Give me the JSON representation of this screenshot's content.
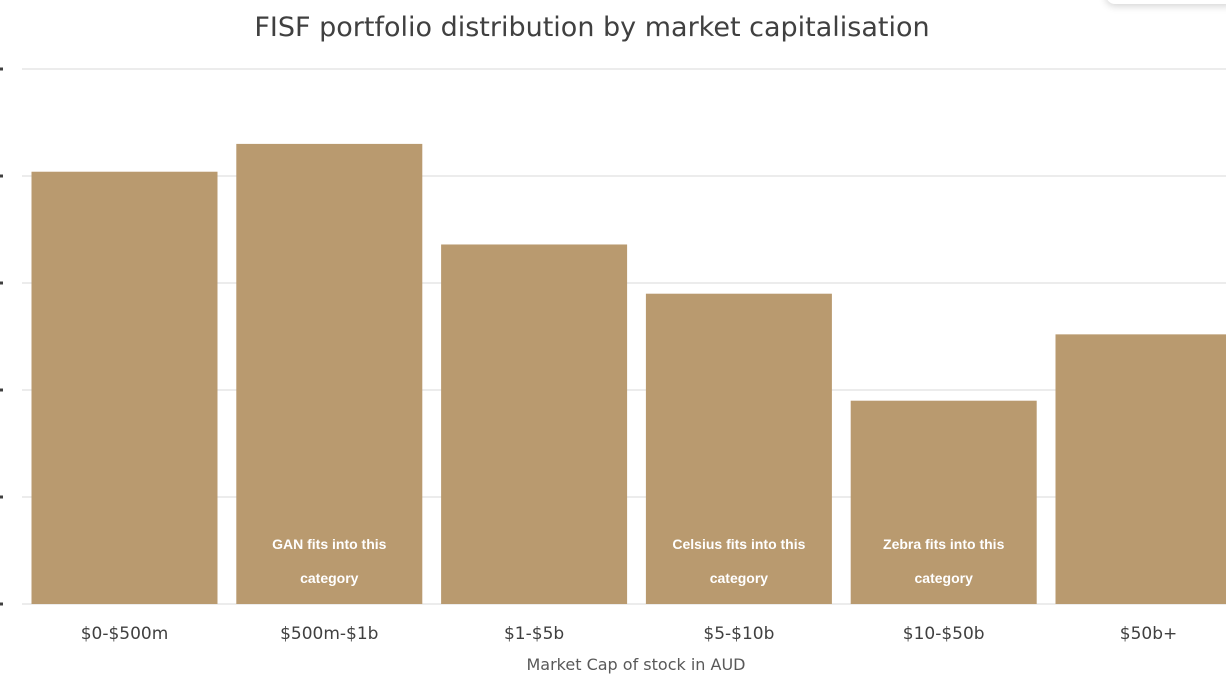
{
  "chart_data": {
    "type": "bar",
    "title": "FISF portfolio distribution by market capitalisation",
    "xlabel": "Market Cap of stock in AUD",
    "ylabel": "",
    "categories": [
      "$0-$500m",
      "$500m-$1b",
      "$1-$5b",
      "$5-$10b",
      "$10-$50b",
      "$50b+"
    ],
    "values": [
      20.2,
      21.5,
      16.8,
      14.5,
      9.5,
      12.6
    ],
    "ylim": [
      0,
      25
    ],
    "yticks": [
      0,
      5,
      10,
      15,
      20,
      25
    ],
    "ytick_labels_visible": false,
    "grid": true,
    "legend": "none",
    "bar_color": "#b99a6f",
    "annotations": [
      {
        "category_index": 1,
        "lines": [
          "GAN fits into this",
          "category"
        ]
      },
      {
        "category_index": 3,
        "lines": [
          "Celsius fits into this",
          "category"
        ]
      },
      {
        "category_index": 4,
        "lines": [
          "Zebra fits into this",
          "category"
        ]
      }
    ]
  }
}
